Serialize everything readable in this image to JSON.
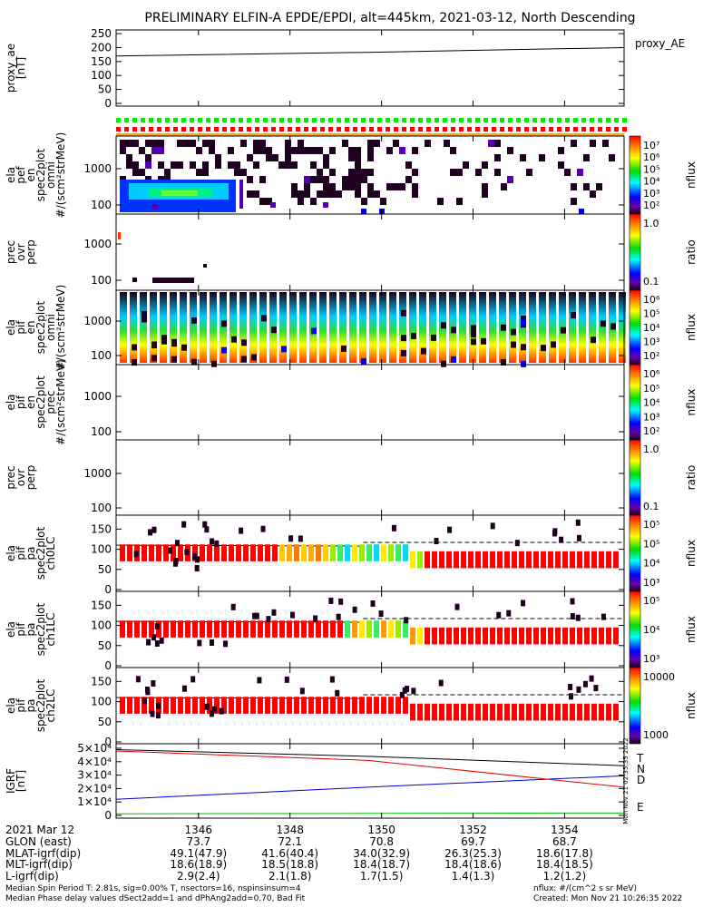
{
  "title": "PRELIMINARY ELFIN-A EPDE/EPDI, alt=445km, 2021-03-12, North Descending",
  "colors": {
    "red": "#ff0000",
    "orange": "#ffaa00",
    "yellow": "#ffff00",
    "green": "#00cc00",
    "cyan": "#00e5ff",
    "blue": "#0000ff",
    "purple": "#5500aa",
    "dark": "#200020"
  },
  "chart_data": [
    {
      "type": "line",
      "panel": "proxy_ae",
      "ylabel": "proxy_ae [nT]",
      "yticks": [
        "250",
        "200",
        "150",
        "100",
        "50",
        "0"
      ],
      "ylim": [
        0,
        260
      ],
      "legend": "proxy_AE",
      "x": [
        1344.2,
        1349.7,
        1355.3
      ],
      "values": [
        170,
        183,
        200
      ]
    },
    {
      "type": "heatmap",
      "panel": "ela_pef_en_spec2plot_omni",
      "ylabel": "ela pef en spec2plot omni #/(scm²strMeV)",
      "yticks": [
        "1000",
        "100"
      ],
      "zlabel": "nflux",
      "zticks": [
        "10⁷",
        "10⁶",
        "10⁵",
        "10⁴",
        "10³",
        "10²"
      ]
    },
    {
      "type": "heatmap",
      "panel": "prec_ovr_perp_e",
      "ylabel": "prec ovr perp",
      "yticks": [
        "1000",
        "100"
      ],
      "zlabel": "ratio",
      "zticks": [
        "1.0",
        "0.1"
      ]
    },
    {
      "type": "heatmap",
      "panel": "ela_pif_en_spec2plot_omni",
      "ylabel": "ela pif en spec2plot omni #/(scm²strMeV)",
      "yticks": [
        "1000",
        "100"
      ],
      "zlabel": "nflux",
      "zticks": [
        "10⁶",
        "10⁵",
        "10⁴",
        "10³",
        "10²"
      ]
    },
    {
      "type": "heatmap",
      "panel": "ela_pif_en_spec2plot_prec",
      "ylabel": "ela pif en spec2plot prec #/(scm²strMeV)",
      "yticks": [
        "1000",
        "100"
      ],
      "zlabel": "nflux",
      "zticks": [
        "10⁶",
        "10⁵",
        "10⁴",
        "10³",
        "10²"
      ]
    },
    {
      "type": "heatmap",
      "panel": "prec_ovr_perp_i",
      "ylabel": "prec ovr perp",
      "yticks": [
        "1000",
        "100"
      ],
      "zlabel": "ratio",
      "zticks": [
        "1.0",
        "0.1"
      ]
    },
    {
      "type": "heatmap",
      "panel": "ela_pif_pa_spec2plot_ch0LC",
      "ylabel": "ela pif pa spec2plot ch0LC",
      "yticks": [
        "150",
        "100",
        "50",
        "0"
      ],
      "zlabel": "nflux",
      "zticks": [
        "10⁵",
        "10⁵",
        "10⁴",
        "10³"
      ]
    },
    {
      "type": "heatmap",
      "panel": "ela_pif_pa_spec2plot_ch1LC",
      "ylabel": "ela pif pa spec2plot ch1LC",
      "yticks": [
        "150",
        "100",
        "50",
        "0"
      ],
      "zlabel": "nflux",
      "zticks": [
        "10⁵",
        "10⁴",
        "10³"
      ]
    },
    {
      "type": "heatmap",
      "panel": "ela_pif_pa_spec2plot_ch2LC",
      "ylabel": "ela pif pa spec2plot ch2LC",
      "yticks": [
        "150",
        "100",
        "50",
        "0"
      ],
      "zlabel": "nflux",
      "zticks": [
        "10000",
        "1000"
      ]
    },
    {
      "type": "line",
      "panel": "igrf",
      "ylabel": "IGRF [nT]",
      "yticks": [
        "5×10⁴",
        "4×10⁴",
        "3×10⁴",
        "2×10⁴",
        "1×10⁴",
        "0"
      ],
      "ylim": [
        0,
        50000
      ],
      "x": [
        1344.2,
        1349.7,
        1355.3
      ],
      "series": [
        {
          "name": "T",
          "color": "#000000",
          "values": [
            49000,
            44000,
            37000
          ]
        },
        {
          "name": "N",
          "color": "#0000cc",
          "values": [
            12000,
            21000,
            29500
          ]
        },
        {
          "name": "D",
          "color": "#dd0000",
          "values": [
            48000,
            41000,
            21000
          ]
        },
        {
          "name": "E",
          "color": "#00bb00",
          "values": [
            1200,
            1500,
            1800
          ]
        }
      ]
    }
  ],
  "xaxis": {
    "date_label": "2021 Mar 12",
    "ticks": [
      "1346",
      "1348",
      "1350",
      "1352",
      "1354"
    ],
    "tick_values": [
      1346,
      1348,
      1350,
      1352,
      1354
    ],
    "xlim": [
      1344.2,
      1355.3
    ],
    "rows": [
      {
        "label": "GLON (east)",
        "values": [
          "73.7",
          "72.1",
          "70.8",
          "69.7",
          "68.7"
        ]
      },
      {
        "label": "MLAT-igrf(dip)",
        "values": [
          "49.1(47.9)",
          "41.6(40.4)",
          "34.0(32.9)",
          "26.3(25.3)",
          "18.6(17.8)"
        ]
      },
      {
        "label": "MLT-igrf(dip)",
        "values": [
          "18.6(18.9)",
          "18.5(18.8)",
          "18.4(18.7)",
          "18.4(18.6)",
          "18.4(18.5)"
        ]
      },
      {
        "label": "L-igrf(dip)",
        "values": [
          "2.9(2.4)",
          "2.1(1.8)",
          "1.7(1.5)",
          "1.4(1.3)",
          "1.2(1.2)"
        ]
      }
    ]
  },
  "footer": {
    "line1": "Median Spin Period T: 2.81s, sig=0.00% T, nsectors=16, nspinsinsum=4",
    "line2": "Median Phase delay values dSect2add=1 and dPhAng2add=0.70, Bad Fit",
    "units": "nflux: #/(cm^2 s sr MeV)",
    "created": "Created: Mon Nov 21 10:26:35 2022",
    "stamp": "Mon Nov 21 02:35:35 2022"
  }
}
